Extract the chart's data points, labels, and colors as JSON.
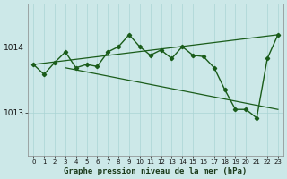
{
  "title": "Graphe pression niveau de la mer (hPa)",
  "bg_color": "#cce8e8",
  "line_color": "#1a5c1a",
  "grid_color": "#aad4d4",
  "x_ticks": [
    0,
    1,
    2,
    3,
    4,
    5,
    6,
    7,
    8,
    9,
    10,
    11,
    12,
    13,
    14,
    15,
    16,
    17,
    18,
    19,
    20,
    21,
    22,
    23
  ],
  "y_ticks": [
    1013,
    1014
  ],
  "ylim": [
    1012.35,
    1014.65
  ],
  "xlim": [
    -0.5,
    23.5
  ],
  "main_pressure": [
    1013.73,
    1013.58,
    1013.76,
    1013.92,
    1013.68,
    1013.73,
    1013.7,
    1013.92,
    1014.0,
    1014.18,
    1014.0,
    1013.87,
    1013.95,
    1013.82,
    1014.0,
    1013.87,
    1013.85,
    1013.68,
    1013.35,
    1013.05,
    1013.05,
    1012.92,
    1013.82,
    1014.18
  ],
  "trend1_x": [
    0,
    23
  ],
  "trend1_y": [
    1013.73,
    1014.18
  ],
  "trend2_x": [
    3,
    23
  ],
  "trend2_y": [
    1013.68,
    1013.05
  ]
}
